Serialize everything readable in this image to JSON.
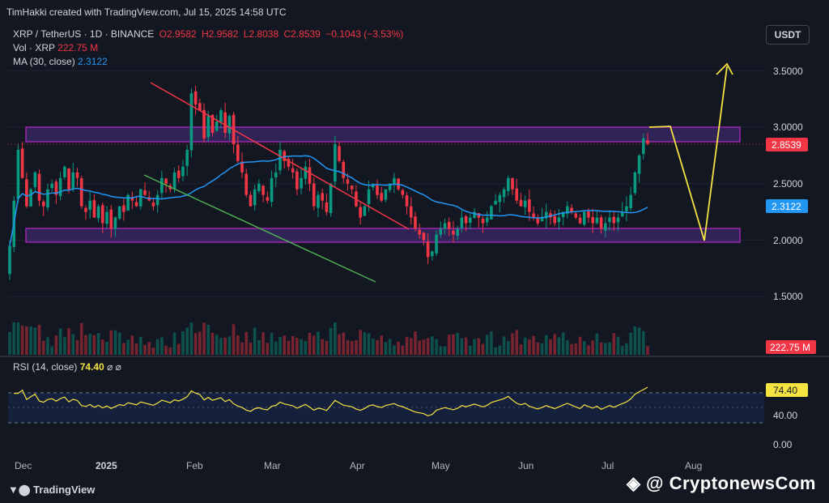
{
  "header": {
    "credit": "TimHakki created with TradingView.com, Jul 15, 2025 14:58 UTC",
    "currency_button": "USDT"
  },
  "legend": {
    "symbol": "XRP / TetherUS · 1D · BINANCE",
    "open": "O2.9582",
    "high": "H2.9582",
    "low": "L2.8038",
    "close": "C2.8539",
    "change": "−0.1043 (−3.53%)",
    "vol_label": "Vol · XRP",
    "vol_value": "222.75 M",
    "ma_label": "MA (30, close)",
    "ma_value": "2.3122"
  },
  "rsi_legend": {
    "label": "RSI (14, close)",
    "value": "74.40",
    "icons": "⌀ ⌀"
  },
  "footer": {
    "tradingview": "TradingView",
    "watermark": "CryptonewsCom"
  },
  "chart_data": {
    "type": "candlestick",
    "price_axis": {
      "ticks": [
        "3.5000",
        "3.0000",
        "2.5000",
        "2.0000",
        "1.5000"
      ],
      "values": [
        3.5,
        3.0,
        2.5,
        2.0,
        1.5
      ]
    },
    "time_axis": {
      "ticks": [
        "Dec",
        "2025",
        "Feb",
        "Mar",
        "Apr",
        "May",
        "Jun",
        "Jul",
        "Aug"
      ]
    },
    "price_labels": {
      "last": "2.8539",
      "ma": "2.3122",
      "volume": "222.75 M"
    },
    "rsi_axis": {
      "ticks": [
        "40.00",
        "0.00"
      ],
      "values": [
        40,
        0
      ],
      "last": "74.40"
    },
    "closes": [
      1.95,
      2.35,
      2.8,
      2.55,
      2.3,
      2.45,
      2.6,
      2.35,
      2.3,
      2.45,
      2.5,
      2.4,
      2.55,
      2.65,
      2.45,
      2.6,
      2.55,
      2.3,
      2.25,
      2.35,
      2.2,
      2.3,
      2.15,
      2.25,
      2.1,
      2.2,
      2.3,
      2.25,
      2.4,
      2.35,
      2.3,
      2.45,
      2.4,
      2.35,
      2.3,
      2.4,
      2.55,
      2.5,
      2.45,
      2.6,
      2.55,
      2.65,
      2.8,
      3.3,
      3.2,
      3.15,
      2.9,
      3.1,
      2.95,
      3.05,
      3.15,
      2.95,
      3.1,
      2.85,
      2.7,
      2.6,
      2.4,
      2.3,
      2.45,
      2.5,
      2.4,
      2.35,
      2.55,
      2.6,
      2.8,
      2.7,
      2.65,
      2.6,
      2.45,
      2.55,
      2.65,
      2.5,
      2.3,
      2.4,
      2.35,
      2.25,
      2.5,
      2.85,
      2.7,
      2.55,
      2.5,
      2.45,
      2.3,
      2.2,
      2.3,
      2.45,
      2.5,
      2.4,
      2.35,
      2.45,
      2.5,
      2.55,
      2.45,
      2.4,
      2.3,
      2.2,
      2.1,
      2.05,
      2.0,
      1.85,
      1.9,
      2.05,
      2.1,
      2.15,
      2.1,
      2.05,
      2.1,
      2.2,
      2.15,
      2.2,
      2.25,
      2.2,
      2.15,
      2.2,
      2.3,
      2.35,
      2.4,
      2.45,
      2.55,
      2.45,
      2.35,
      2.3,
      2.35,
      2.25,
      2.2,
      2.15,
      2.2,
      2.25,
      2.2,
      2.15,
      2.2,
      2.25,
      2.3,
      2.25,
      2.2,
      2.15,
      2.25,
      2.2,
      2.15,
      2.2,
      2.1,
      2.15,
      2.2,
      2.15,
      2.2,
      2.25,
      2.3,
      2.4,
      2.6,
      2.75,
      2.9,
      2.8539
    ],
    "ma30_last": 2.3122,
    "annotations": {
      "resistance_zone": [
        2.875,
        3.0
      ],
      "support_zone": [
        2.0,
        2.105
      ],
      "projection": "yellow path from 3.0 down to 2.0 then up past 3.5",
      "downtrend_line": "red",
      "lower_channel_line": "green"
    }
  }
}
